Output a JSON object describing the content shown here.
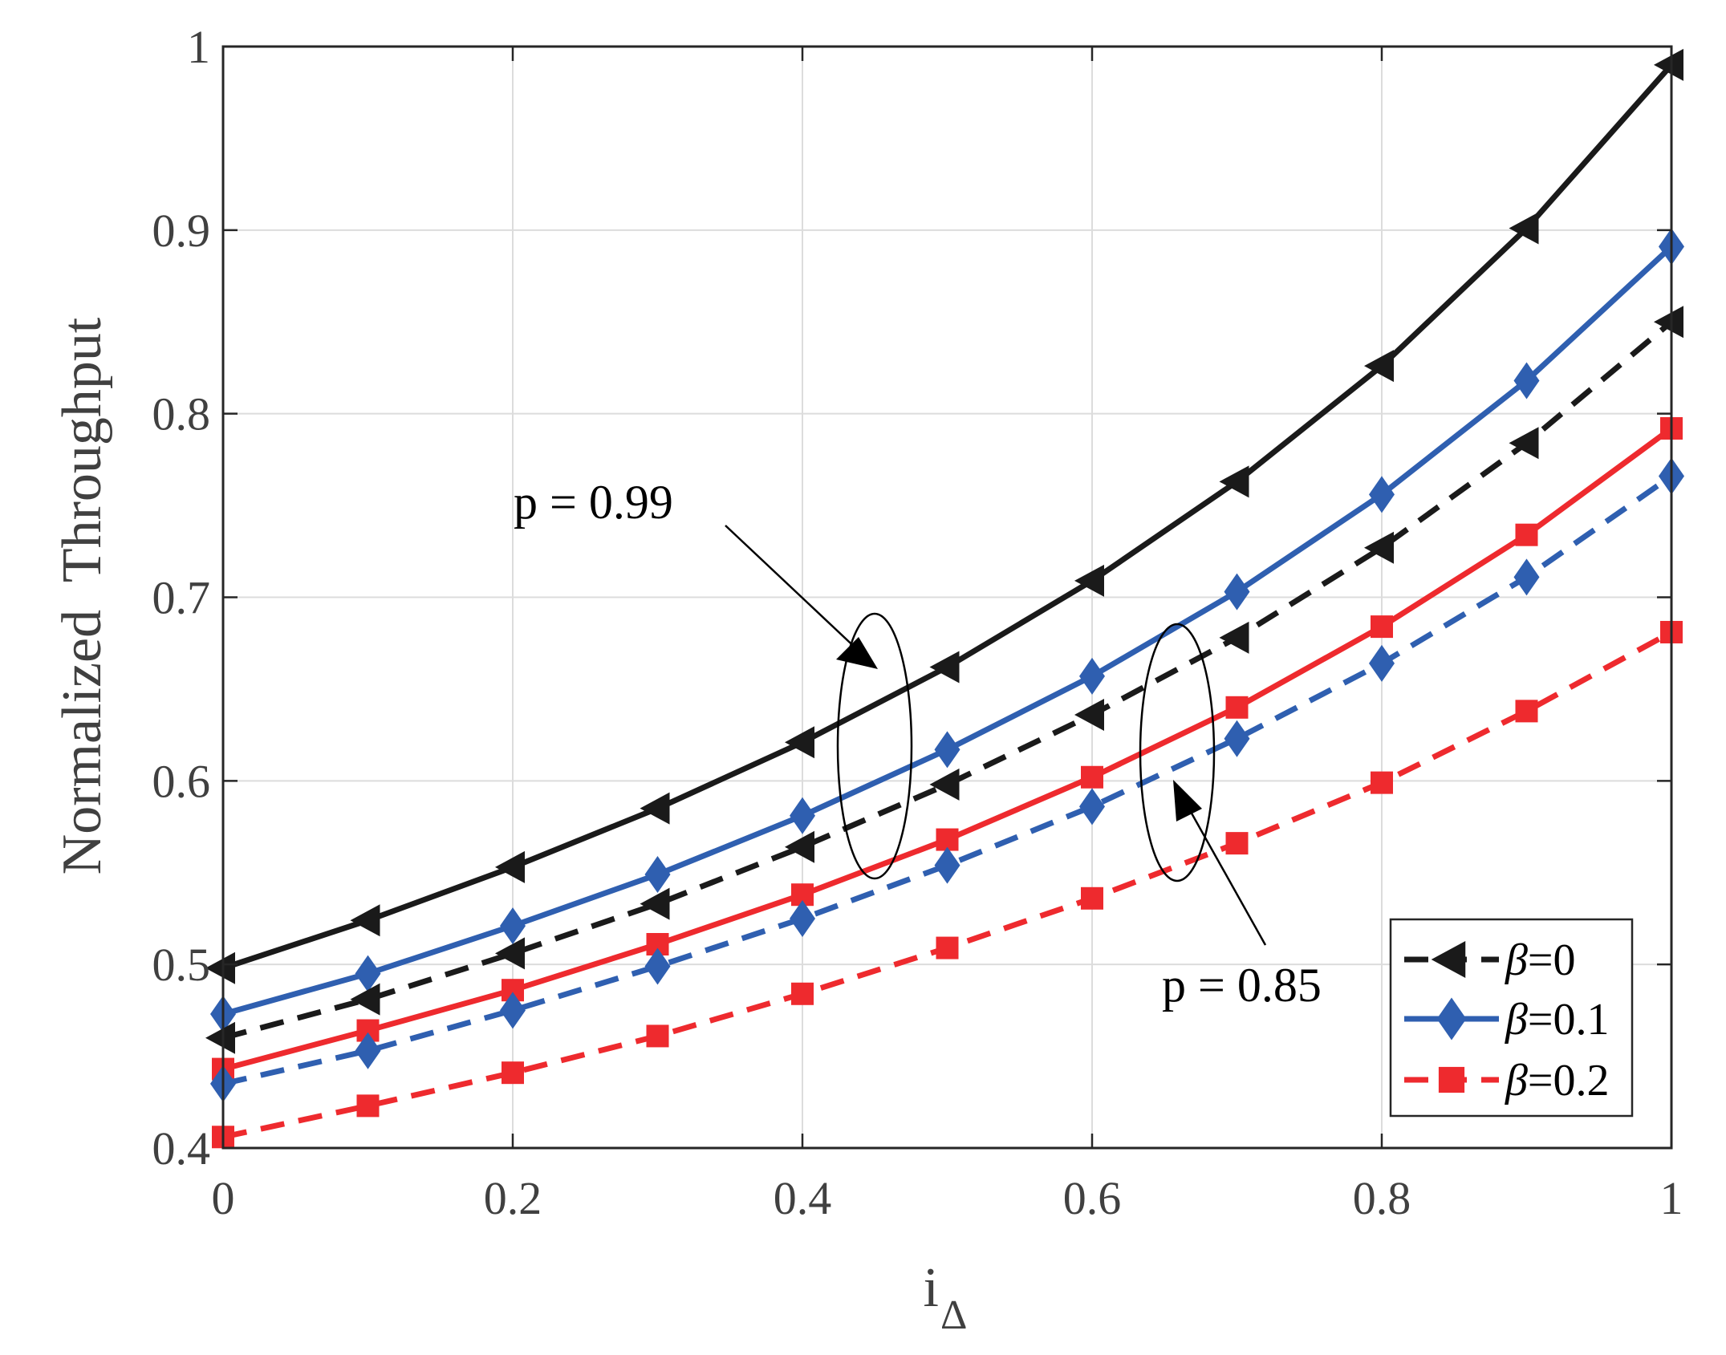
{
  "chart_data": {
    "type": "line",
    "title": "",
    "xlabel": "i",
    "xlabel_sub": "Δ",
    "ylabel": "Normalized  Throughput",
    "xlim": [
      0,
      1
    ],
    "ylim": [
      0.4,
      1
    ],
    "x": [
      0,
      0.1,
      0.2,
      0.3,
      0.4,
      0.5,
      0.6,
      0.7,
      0.8,
      0.9,
      1
    ],
    "xticks": [
      0,
      0.2,
      0.4,
      0.6,
      0.8,
      1
    ],
    "xtick_labels": [
      "0",
      "0.2",
      "0.4",
      "0.6",
      "0.8",
      "1"
    ],
    "yticks": [
      0.4,
      0.5,
      0.6,
      0.7,
      0.8,
      0.9,
      1
    ],
    "ytick_labels": [
      "0.4",
      "0.5",
      "0.6",
      "0.7",
      "0.8",
      "0.9",
      "1"
    ],
    "grid": true,
    "series": [
      {
        "name": "β=0, p=0.99",
        "color": "#1a1a1a",
        "marker": "triangle-left",
        "style": "solid",
        "values": [
          0.498,
          0.524,
          0.553,
          0.585,
          0.621,
          0.662,
          0.709,
          0.763,
          0.826,
          0.901,
          0.99
        ]
      },
      {
        "name": "β=0.1, p=0.99",
        "color": "#2f5fb0",
        "marker": "diamond",
        "style": "solid",
        "values": [
          0.473,
          0.495,
          0.521,
          0.549,
          0.581,
          0.617,
          0.657,
          0.703,
          0.756,
          0.818,
          0.891
        ]
      },
      {
        "name": "β=0, p=0.85",
        "color": "#1a1a1a",
        "marker": "triangle-left",
        "style": "dashed",
        "values": [
          0.46,
          0.481,
          0.506,
          0.533,
          0.564,
          0.598,
          0.636,
          0.678,
          0.727,
          0.784,
          0.85
        ]
      },
      {
        "name": "β=0.2, p=0.99",
        "color": "#ee2a2e",
        "marker": "square",
        "style": "solid",
        "values": [
          0.443,
          0.464,
          0.486,
          0.511,
          0.538,
          0.568,
          0.602,
          0.64,
          0.684,
          0.734,
          0.792
        ]
      },
      {
        "name": "β=0.1, p=0.85",
        "color": "#2f5fb0",
        "marker": "diamond",
        "style": "dashed",
        "values": [
          0.435,
          0.453,
          0.475,
          0.499,
          0.525,
          0.554,
          0.586,
          0.623,
          0.664,
          0.711,
          0.766
        ]
      },
      {
        "name": "β=0.2, p=0.85",
        "color": "#ee2a2e",
        "marker": "square",
        "style": "dashed",
        "values": [
          0.406,
          0.423,
          0.441,
          0.461,
          0.484,
          0.509,
          0.536,
          0.566,
          0.599,
          0.638,
          0.681
        ]
      }
    ],
    "legend": {
      "position": "bottom-right",
      "entries": [
        {
          "symbol": "β",
          "text": "=0",
          "color": "#1a1a1a",
          "marker": "triangle-left",
          "style": "dashed"
        },
        {
          "symbol": "β",
          "text": "=0.1",
          "color": "#2f5fb0",
          "marker": "diamond",
          "style": "solid"
        },
        {
          "symbol": "β",
          "text": "=0.2",
          "color": "#ee2a2e",
          "marker": "square",
          "style": "dashed"
        }
      ]
    },
    "annotations": [
      {
        "text": "p = 0.99",
        "target_x": 0.455,
        "target_y": 0.61
      },
      {
        "text": "p = 0.85",
        "target_x": 0.66,
        "target_y": 0.605
      }
    ]
  }
}
